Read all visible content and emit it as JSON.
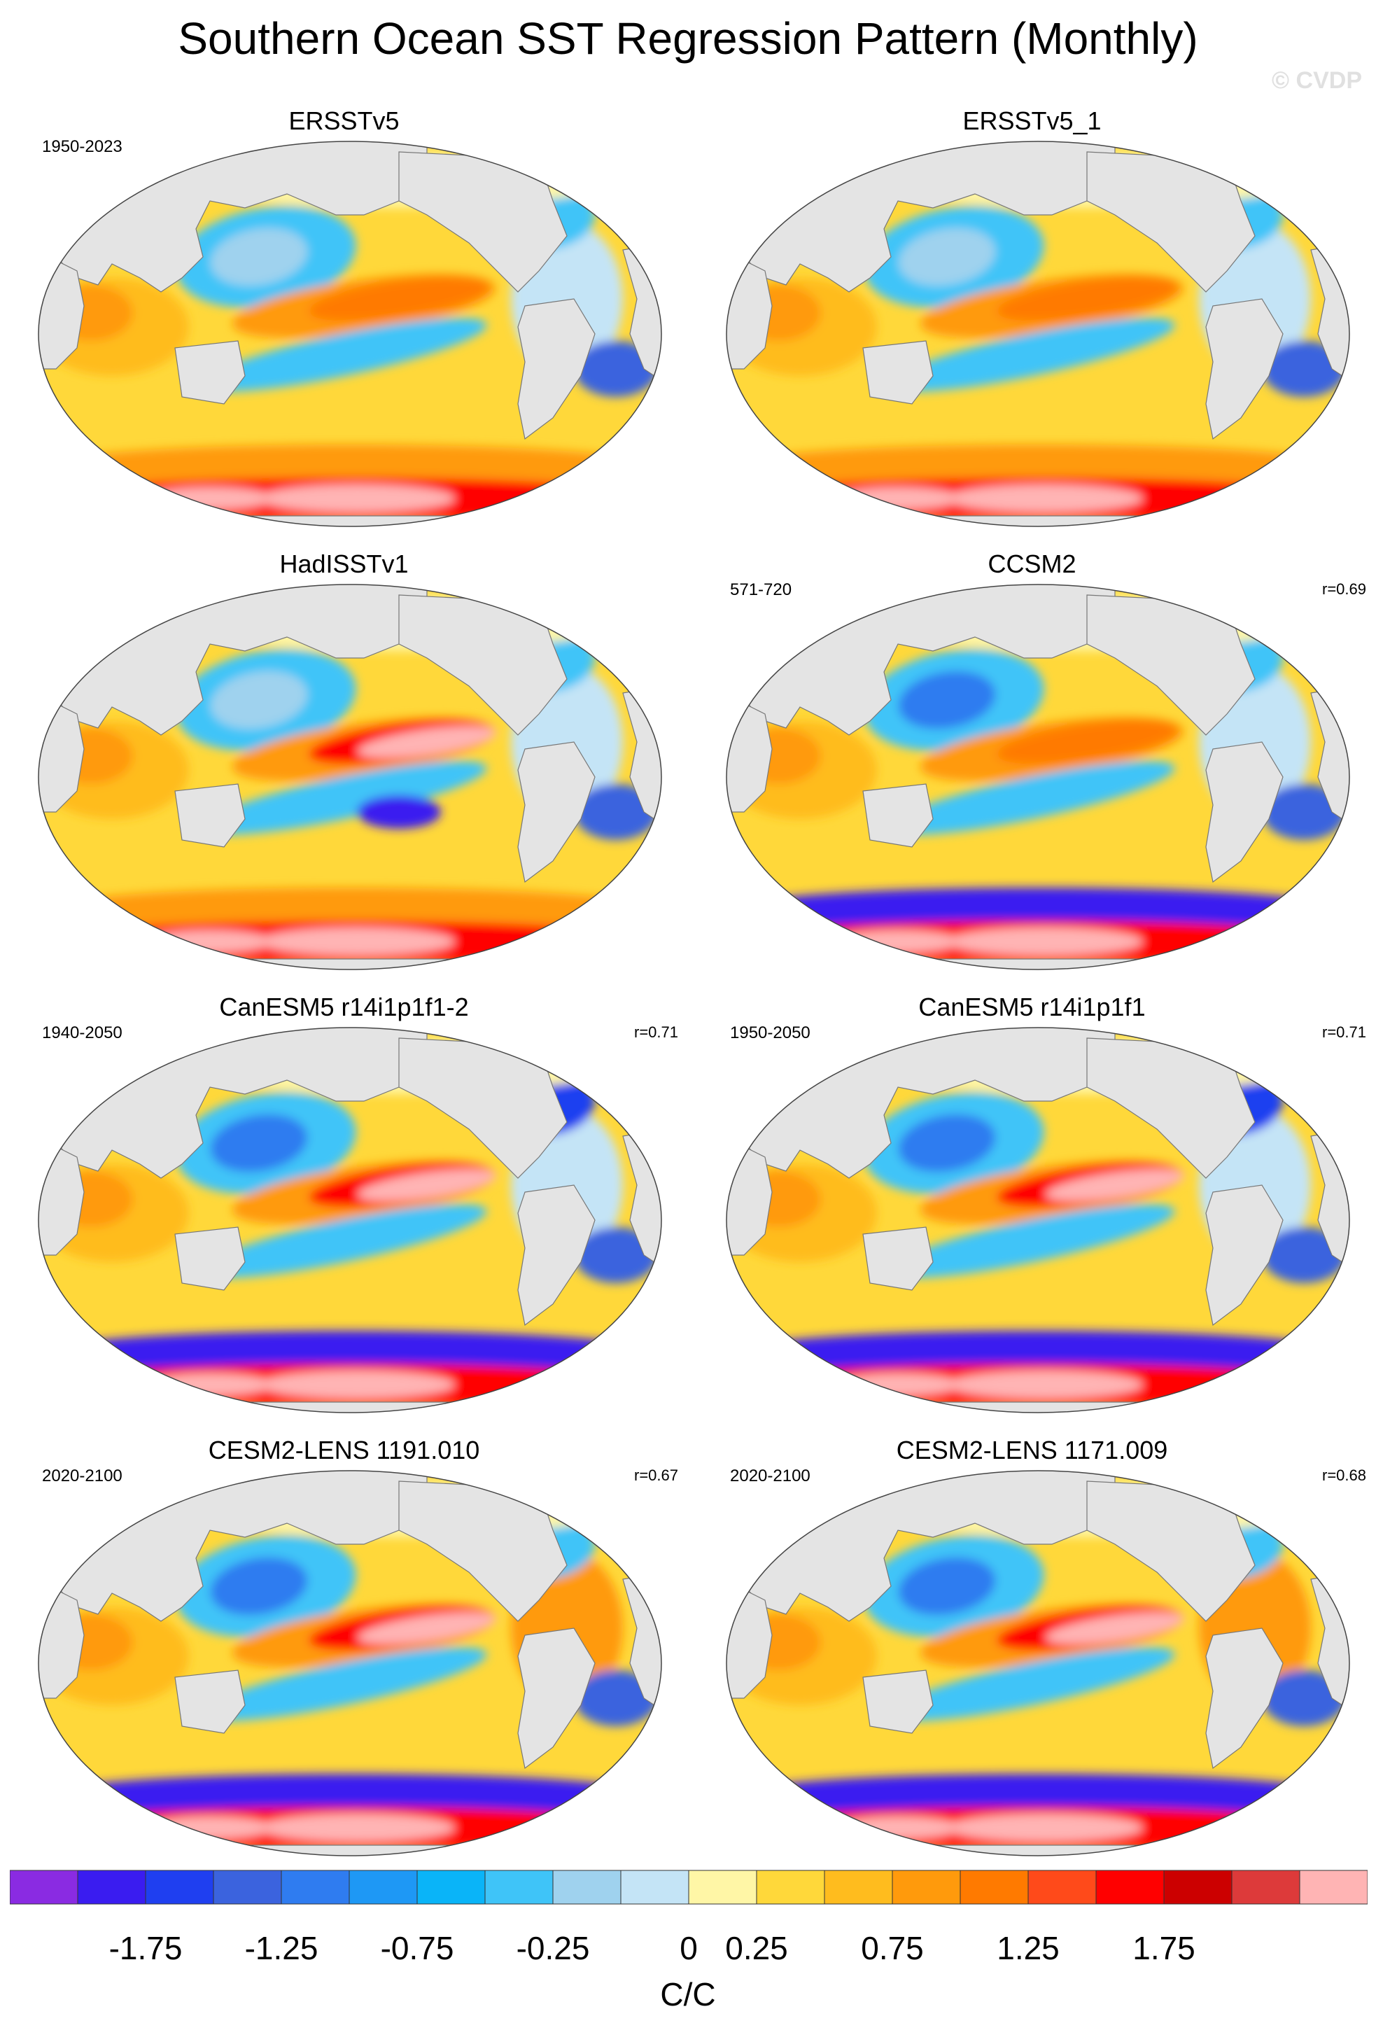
{
  "title": "Southern Ocean SST Regression Pattern (Monthly)",
  "credit": "© CVDP",
  "panels": [
    {
      "title": "ERSSTv5",
      "years": "1950-2023",
      "r": ""
    },
    {
      "title": "ERSSTv5_1",
      "years": "",
      "r": ""
    },
    {
      "title": "HadISSTv1",
      "years": "",
      "r": ""
    },
    {
      "title": "CCSM2",
      "years": "571-720",
      "r": "r=0.69"
    },
    {
      "title": "CanESM5 r14i1p1f1-2",
      "years": "1940-2050",
      "r": "r=0.71"
    },
    {
      "title": "CanESM5 r14i1p1f1",
      "years": "1950-2050",
      "r": "r=0.71"
    },
    {
      "title": "CESM2-LENS 1191.010",
      "years": "2020-2100",
      "r": "r=0.67"
    },
    {
      "title": "CESM2-LENS 1171.009",
      "years": "2020-2100",
      "r": "r=0.68"
    }
  ],
  "colorbar": {
    "colors": [
      "#8a2be2",
      "#3a1cf0",
      "#1f3ff0",
      "#3b63de",
      "#2f7cf0",
      "#1e98f5",
      "#0ab4f8",
      "#3fc4f8",
      "#9fd2ee",
      "#c4e4f6",
      "#fff6a6",
      "#ffd83a",
      "#ffbc1e",
      "#ff9a0c",
      "#ff7a00",
      "#ff4a1a",
      "#ff0000",
      "#cc0000",
      "#dd3a3a",
      "#ffb4b4"
    ],
    "tick_labels": [
      "-1.75",
      "-1.25",
      "-0.75",
      "-0.25",
      "0",
      "0.25",
      "0.75",
      "1.25",
      "1.75"
    ],
    "units": "C/C"
  }
}
